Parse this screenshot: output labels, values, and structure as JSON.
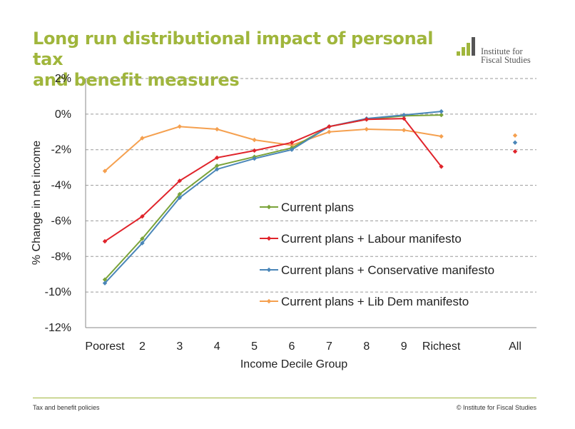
{
  "title_line1": "Long run distributional impact of personal tax",
  "title_line2": "and benefit measures",
  "logo": {
    "line1": "Institute for",
    "line2": "Fiscal Studies",
    "color": "#a0b63c"
  },
  "footer": {
    "left": "Tax and benefit policies",
    "right": "© Institute for Fiscal Studies"
  },
  "chart_data": {
    "type": "line",
    "title": "Long run distributional impact of personal tax and benefit measures",
    "xlabel": "Income Decile Group",
    "ylabel": "% Change in net income",
    "ylim": [
      -12,
      2
    ],
    "yticks": [
      2,
      0,
      -2,
      -4,
      -6,
      -8,
      -10,
      -12
    ],
    "ytick_labels": [
      "2%",
      "0%",
      "-2%",
      "-4%",
      "-6%",
      "-8%",
      "-10%",
      "-12%"
    ],
    "categories": [
      "Poorest",
      "2",
      "3",
      "4",
      "5",
      "6",
      "7",
      "8",
      "9",
      "Richest"
    ],
    "all_label": "All",
    "grid": "horizontal dashed",
    "legend_position": "center-right",
    "series": [
      {
        "name": "Current plans",
        "color": "#7aa339",
        "values": [
          -9.3,
          -7.0,
          -4.5,
          -2.9,
          -2.4,
          -1.9,
          -0.7,
          -0.3,
          -0.1,
          -0.05
        ],
        "all": null
      },
      {
        "name": "Current plans + Labour manifesto",
        "color": "#e0242b",
        "values": [
          -7.15,
          -5.75,
          -3.75,
          -2.45,
          -2.05,
          -1.6,
          -0.7,
          -0.3,
          -0.25,
          -2.95
        ],
        "all": -2.1
      },
      {
        "name": "Current plans + Conservative manifesto",
        "color": "#4a86b8",
        "values": [
          -9.5,
          -7.25,
          -4.7,
          -3.1,
          -2.5,
          -2.0,
          -0.7,
          -0.25,
          -0.05,
          0.15
        ],
        "all": -1.6
      },
      {
        "name": "Current plans + Lib Dem manifesto",
        "color": "#f5a04f",
        "values": [
          -3.2,
          -1.35,
          -0.7,
          -0.85,
          -1.45,
          -1.75,
          -1.0,
          -0.85,
          -0.9,
          -1.25
        ],
        "all": -1.2
      }
    ]
  }
}
